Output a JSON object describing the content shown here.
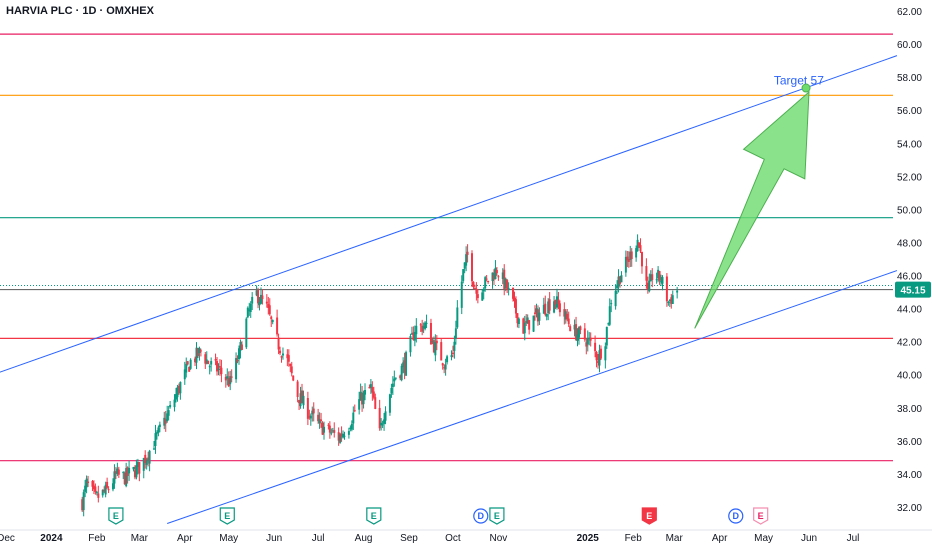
{
  "header": {
    "title": "HARVIA PLC · 1D · OMXHEX"
  },
  "colors": {
    "up": "#089981",
    "down": "#f23645",
    "channel": "#2962ff",
    "red_line": "#f23645",
    "pink_line": "#e91e63",
    "orange_line": "#ff9800",
    "green_line": "#089981",
    "arrow_fill": "#6ddc6d",
    "arrow_stroke": "#4caf50",
    "price_badge": "#089981",
    "axis_text": "#131722"
  },
  "chart_data": {
    "type": "candlestick",
    "title": "HARVIA PLC · 1D · OMXHEX",
    "ylim": [
      31.2,
      62.6
    ],
    "y_ticks": [
      32.0,
      34.0,
      36.0,
      38.0,
      40.0,
      42.0,
      44.0,
      46.0,
      48.0,
      50.0,
      52.0,
      54.0,
      56.0,
      58.0,
      60.0,
      62.0
    ],
    "y_tick_labels": [
      "32.00",
      "34.00",
      "36.00",
      "38.00",
      "40.00",
      "42.00",
      "44.00",
      "46.00",
      "48.00",
      "50.00",
      "52.00",
      "54.00",
      "56.00",
      "58.00",
      "60.00",
      "62.00"
    ],
    "x_tick_labels": [
      {
        "label": "Dec",
        "date": "2023-12-01"
      },
      {
        "label": "2024",
        "date": "2024-01-01",
        "bold": true
      },
      {
        "label": "Feb",
        "date": "2024-02-01"
      },
      {
        "label": "Mar",
        "date": "2024-03-01"
      },
      {
        "label": "Apr",
        "date": "2024-04-01"
      },
      {
        "label": "May",
        "date": "2024-05-01"
      },
      {
        "label": "Jun",
        "date": "2024-06-01"
      },
      {
        "label": "Jul",
        "date": "2024-07-01"
      },
      {
        "label": "Aug",
        "date": "2024-08-01"
      },
      {
        "label": "Sep",
        "date": "2024-09-01"
      },
      {
        "label": "Oct",
        "date": "2024-10-01"
      },
      {
        "label": "Nov",
        "date": "2024-11-01"
      },
      {
        "label": "2025",
        "date": "2025-01-01",
        "bold": true
      },
      {
        "label": "Feb",
        "date": "2025-02-01"
      },
      {
        "label": "Mar",
        "date": "2025-03-01"
      },
      {
        "label": "Apr",
        "date": "2025-04-01"
      },
      {
        "label": "May",
        "date": "2025-05-01"
      },
      {
        "label": "Jun",
        "date": "2025-06-01"
      },
      {
        "label": "Jul",
        "date": "2025-07-01"
      }
    ],
    "price_path": [
      [
        "2024-01-22",
        32.3
      ],
      [
        "2024-01-25",
        33.4
      ],
      [
        "2024-01-31",
        32.5
      ],
      [
        "2024-02-08",
        33.0
      ],
      [
        "2024-02-14",
        33.9
      ],
      [
        "2024-02-20",
        33.8
      ],
      [
        "2024-03-01",
        34.4
      ],
      [
        "2024-03-08",
        35.4
      ],
      [
        "2024-03-15",
        36.6
      ],
      [
        "2024-03-22",
        37.9
      ],
      [
        "2024-03-28",
        39.2
      ],
      [
        "2024-04-05",
        40.8
      ],
      [
        "2024-04-12",
        41.4
      ],
      [
        "2024-04-18",
        40.6
      ],
      [
        "2024-04-24",
        40.3
      ],
      [
        "2024-05-02",
        39.5
      ],
      [
        "2024-05-08",
        41.2
      ],
      [
        "2024-05-14",
        43.6
      ],
      [
        "2024-05-20",
        44.9
      ],
      [
        "2024-05-27",
        44.0
      ],
      [
        "2024-06-03",
        42.0
      ],
      [
        "2024-06-10",
        40.8
      ],
      [
        "2024-06-17",
        38.8
      ],
      [
        "2024-06-24",
        37.8
      ],
      [
        "2024-07-01",
        37.0
      ],
      [
        "2024-07-08",
        36.6
      ],
      [
        "2024-07-15",
        36.2
      ],
      [
        "2024-07-22",
        37.0
      ],
      [
        "2024-07-29",
        38.4
      ],
      [
        "2024-08-06",
        39.2
      ],
      [
        "2024-08-12",
        36.4
      ],
      [
        "2024-08-16",
        38.2
      ],
      [
        "2024-08-22",
        39.8
      ],
      [
        "2024-08-29",
        40.6
      ],
      [
        "2024-09-05",
        42.8
      ],
      [
        "2024-09-12",
        43.0
      ],
      [
        "2024-09-18",
        41.8
      ],
      [
        "2024-09-25",
        40.8
      ],
      [
        "2024-10-01",
        41.2
      ],
      [
        "2024-10-04",
        44.0
      ],
      [
        "2024-10-08",
        46.2
      ],
      [
        "2024-10-11",
        47.2
      ],
      [
        "2024-10-17",
        45.0
      ],
      [
        "2024-10-24",
        45.6
      ],
      [
        "2024-10-31",
        46.4
      ],
      [
        "2024-11-07",
        45.2
      ],
      [
        "2024-11-12",
        44.0
      ],
      [
        "2024-11-18",
        42.8
      ],
      [
        "2024-11-25",
        43.4
      ],
      [
        "2024-12-02",
        44.0
      ],
      [
        "2024-12-09",
        44.6
      ],
      [
        "2024-12-16",
        43.6
      ],
      [
        "2024-12-23",
        42.6
      ],
      [
        "2025-01-02",
        42.0
      ],
      [
        "2025-01-08",
        41.0
      ],
      [
        "2025-01-13",
        42.2
      ],
      [
        "2025-01-17",
        44.6
      ],
      [
        "2025-01-23",
        46.0
      ],
      [
        "2025-01-29",
        47.0
      ],
      [
        "2025-02-04",
        48.2
      ],
      [
        "2025-02-07",
        47.0
      ],
      [
        "2025-02-11",
        44.8
      ],
      [
        "2025-02-14",
        46.0
      ],
      [
        "2025-02-20",
        45.8
      ],
      [
        "2025-02-25",
        44.4
      ],
      [
        "2025-03-03",
        45.15
      ]
    ],
    "horizontal_lines": [
      {
        "name": "resistance-top",
        "y": 60.6,
        "color": "#e91e63"
      },
      {
        "name": "target-level",
        "y": 56.9,
        "color": "#ff9800"
      },
      {
        "name": "resistance-green",
        "y": 49.5,
        "color": "#089981"
      },
      {
        "name": "support-red",
        "y": 42.2,
        "color": "#f23645"
      },
      {
        "name": "support-low",
        "y": 34.8,
        "color": "#e91e63"
      }
    ],
    "channel_lines": [
      {
        "name": "channel-upper",
        "from": [
          "2023-11-25",
          40.1
        ],
        "to": [
          "2025-07-31",
          59.3
        ]
      },
      {
        "name": "channel-lower",
        "from": [
          "2024-03-20",
          31.0
        ],
        "to": [
          "2025-07-31",
          46.3
        ]
      }
    ],
    "current_price": {
      "value": 45.15,
      "label": "45.15",
      "prev_close": 45.4
    },
    "arrow": {
      "from": [
        "2025-03-15",
        42.8
      ],
      "to": [
        "2025-06-01",
        57.1
      ]
    },
    "annotation": {
      "text": "Target 57",
      "date": "2025-05-08",
      "y": 57.8
    },
    "events": [
      {
        "kind": "E",
        "date": "2024-02-14",
        "style": "earnings"
      },
      {
        "kind": "E",
        "date": "2024-04-30",
        "style": "earnings"
      },
      {
        "kind": "E",
        "date": "2024-08-08",
        "style": "earnings"
      },
      {
        "kind": "D",
        "date": "2024-10-20",
        "style": "dividend"
      },
      {
        "kind": "E",
        "date": "2024-10-31",
        "style": "earnings"
      },
      {
        "kind": "E",
        "date": "2025-02-12",
        "style": "earnings-red"
      },
      {
        "kind": "D",
        "date": "2025-04-12",
        "style": "dividend"
      },
      {
        "kind": "E",
        "date": "2025-04-29",
        "style": "earnings-pink"
      }
    ]
  }
}
